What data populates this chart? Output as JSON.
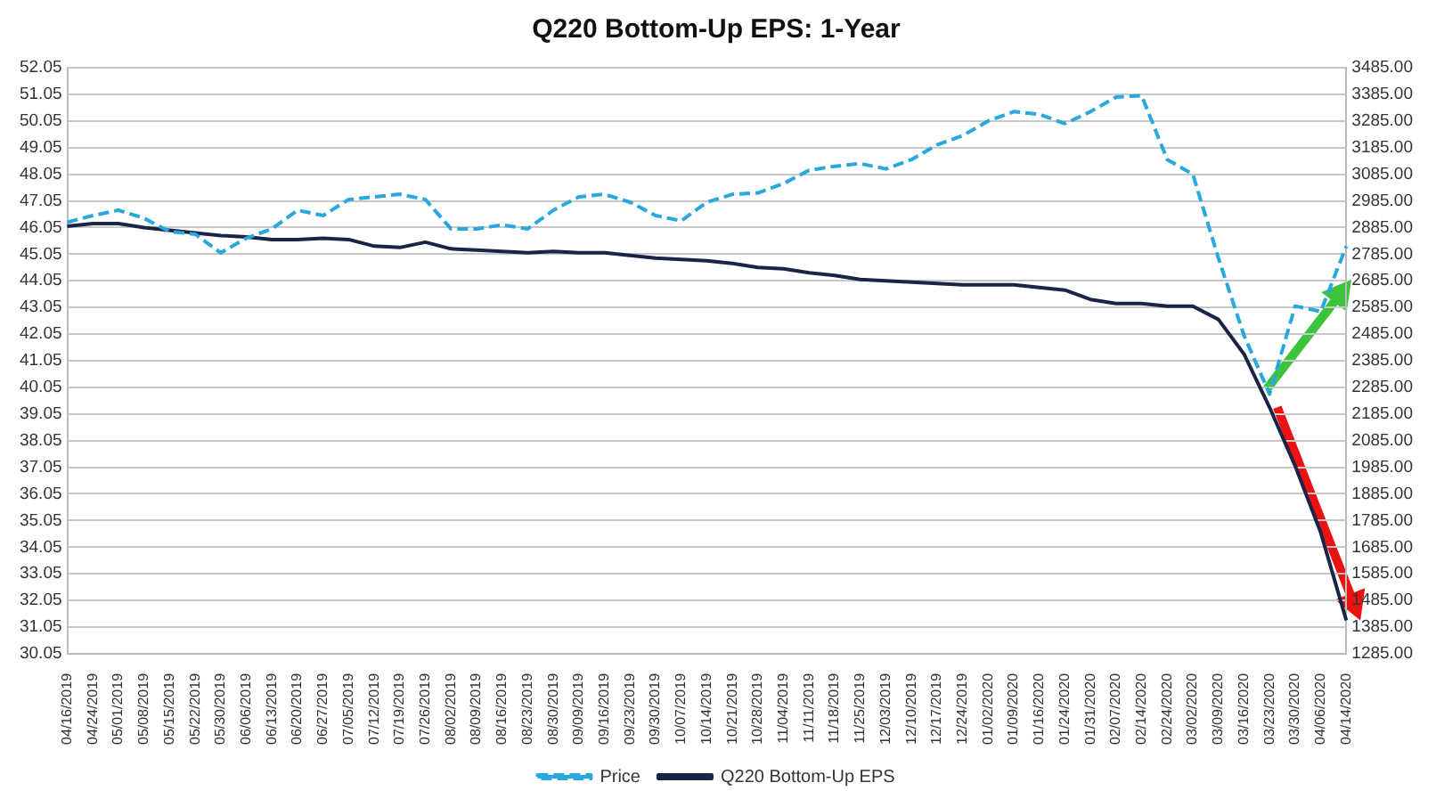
{
  "chart_data": {
    "type": "line",
    "title": "Q220 Bottom-Up EPS: 1-Year",
    "categories": [
      "04/16/2019",
      "04/24/2019",
      "05/01/2019",
      "05/08/2019",
      "05/15/2019",
      "05/22/2019",
      "05/30/2019",
      "06/06/2019",
      "06/13/2019",
      "06/20/2019",
      "06/27/2019",
      "07/05/2019",
      "07/12/2019",
      "07/19/2019",
      "07/26/2019",
      "08/02/2019",
      "08/09/2019",
      "08/16/2019",
      "08/23/2019",
      "08/30/2019",
      "09/09/2019",
      "09/16/2019",
      "09/23/2019",
      "09/30/2019",
      "10/07/2019",
      "10/14/2019",
      "10/21/2019",
      "10/28/2019",
      "11/04/2019",
      "11/11/2019",
      "11/18/2019",
      "11/25/2019",
      "12/03/2019",
      "12/10/2019",
      "12/17/2019",
      "12/24/2019",
      "01/02/2020",
      "01/09/2020",
      "01/16/2020",
      "01/24/2020",
      "01/31/2020",
      "02/07/2020",
      "02/14/2020",
      "02/24/2020",
      "03/02/2020",
      "03/09/2020",
      "03/16/2020",
      "03/23/2020",
      "03/30/2020",
      "04/06/2020",
      "04/14/2020"
    ],
    "series": [
      {
        "name": "Price",
        "color": "#29a8e0",
        "axis": "y2",
        "line_style": "dashed",
        "values": [
          2905,
          2930,
          2950,
          2920,
          2870,
          2860,
          2790,
          2845,
          2880,
          2950,
          2930,
          2990,
          3000,
          3010,
          2990,
          2880,
          2880,
          2895,
          2880,
          2950,
          3000,
          3010,
          2980,
          2930,
          2910,
          2980,
          3010,
          3015,
          3050,
          3100,
          3115,
          3125,
          3105,
          3140,
          3195,
          3230,
          3285,
          3320,
          3310,
          3275,
          3320,
          3375,
          3380,
          3140,
          3085,
          2770,
          2480,
          2260,
          2590,
          2570,
          2815
        ]
      },
      {
        "name": "Q220 Bottom-Up EPS",
        "color": "#1a2447",
        "line_style": "solid",
        "values": [
          46.1,
          46.2,
          46.2,
          46.05,
          45.95,
          45.85,
          45.75,
          45.7,
          45.6,
          45.6,
          45.65,
          45.6,
          45.35,
          45.3,
          45.5,
          45.25,
          45.2,
          45.15,
          45.1,
          45.15,
          45.1,
          45.1,
          45.0,
          44.9,
          44.85,
          44.8,
          44.7,
          44.55,
          44.5,
          44.35,
          44.25,
          44.1,
          44.05,
          44.0,
          43.95,
          43.9,
          43.9,
          43.9,
          43.8,
          43.7,
          43.35,
          43.2,
          43.2,
          43.1,
          43.1,
          42.6,
          41.3,
          39.3,
          37.1,
          34.6,
          31.3
        ]
      }
    ],
    "ylim": [
      30.05,
      52.05
    ],
    "yticks": [
      30.05,
      31.05,
      32.05,
      33.05,
      34.05,
      35.05,
      36.05,
      37.05,
      38.05,
      39.05,
      40.05,
      41.05,
      42.05,
      43.05,
      44.05,
      45.05,
      46.05,
      47.05,
      48.05,
      49.05,
      50.05,
      51.05,
      52.05
    ],
    "y2lim": [
      1285,
      3485
    ],
    "y2ticks": [
      {
        "value": 1285,
        "label": "1285.00"
      },
      {
        "value": 1385,
        "label": "1385.00"
      },
      {
        "value": 1485,
        "label": "1485.00"
      },
      {
        "value": 1585,
        "label": "1585.00"
      },
      {
        "value": 1685,
        "label": "1685.00"
      },
      {
        "value": 1785,
        "label": "1785.00"
      },
      {
        "value": 1885,
        "label": "1885.00"
      },
      {
        "value": 1985,
        "label": "1985.00"
      },
      {
        "value": 2085,
        "label": "2085.00"
      },
      {
        "value": 2185,
        "label": "2185.00"
      },
      {
        "value": 2285,
        "label": "2285.00"
      },
      {
        "value": 2385,
        "label": "2385.00"
      },
      {
        "value": 2485,
        "label": "2485.00"
      },
      {
        "value": 2585,
        "label": "2585.00"
      },
      {
        "value": 2685,
        "label": "2685.00"
      },
      {
        "value": 2785,
        "label": "2785.00"
      },
      {
        "value": 2885,
        "label": "2885.00"
      },
      {
        "value": 2985,
        "label": "2985.00"
      },
      {
        "value": 3085,
        "label": "3085.00"
      },
      {
        "value": 3185,
        "label": "3185.00"
      },
      {
        "value": 3285,
        "label": "3285.00"
      },
      {
        "value": 3385,
        "label": "3385.00"
      },
      {
        "value": 3485,
        "label": "3485.00"
      }
    ],
    "grid": "y",
    "legend": "bottom",
    "marker": "none"
  }
}
